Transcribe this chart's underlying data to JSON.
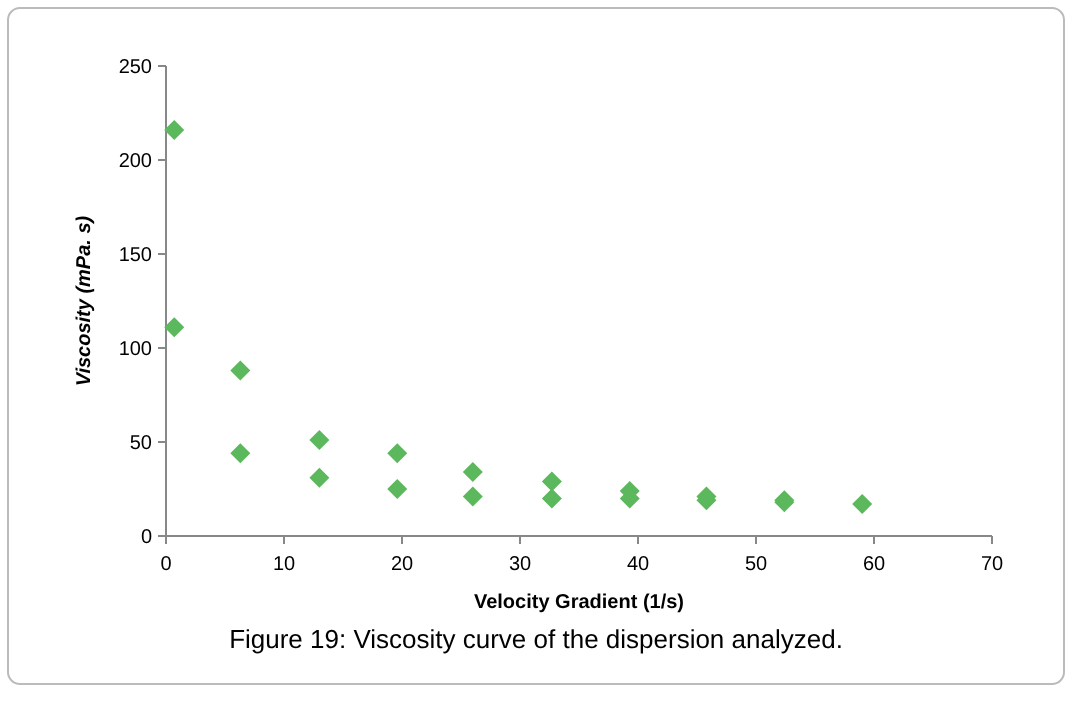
{
  "chart_data": {
    "type": "scatter",
    "xlabel": "Velocity Gradient (1/s)",
    "ylabel": "Viscosity  (mPa. s)",
    "annotations": [
      "Figure 19: Viscosity curve of the dispersion analyzed."
    ],
    "x": [
      0.7,
      0.7,
      6.3,
      6.3,
      13,
      13,
      19.6,
      19.6,
      26,
      26,
      32.7,
      32.7,
      39.3,
      39.3,
      45.8,
      45.8,
      52.4,
      52.4,
      59
    ],
    "series": [
      {
        "color": "#5cb85c",
        "values": [
          216,
          111,
          88,
          44,
          51,
          31,
          44,
          25,
          34,
          21,
          29,
          20,
          24,
          20,
          21,
          19,
          19,
          18,
          17
        ]
      }
    ],
    "xlim": [
      0,
      70
    ],
    "ylim": [
      0,
      250
    ],
    "xticks": [
      0,
      10,
      20,
      30,
      40,
      50,
      60,
      70
    ],
    "yticks": [
      0,
      50,
      100,
      150,
      200,
      250
    ],
    "marker": "diamond"
  }
}
